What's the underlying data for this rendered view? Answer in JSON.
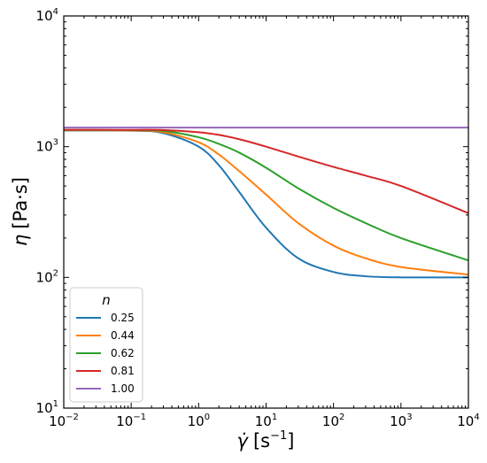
{
  "chart_data": {
    "type": "line",
    "xscale": "log",
    "yscale": "log",
    "xlim": [
      0.01,
      10000
    ],
    "ylim": [
      10,
      10000
    ],
    "xlabel": {
      "symbol": "γ̇",
      "unit": "[s",
      "unit_exp": "−1",
      "unit_close": "]"
    },
    "ylabel": {
      "symbol": "η",
      "unit": "[Pa·s]"
    },
    "xticks": [
      {
        "base": "10",
        "exp": "−2"
      },
      {
        "base": "10",
        "exp": "−1"
      },
      {
        "base": "10",
        "exp": "0"
      },
      {
        "base": "10",
        "exp": "1"
      },
      {
        "base": "10",
        "exp": "2"
      },
      {
        "base": "10",
        "exp": "3"
      },
      {
        "base": "10",
        "exp": "4"
      }
    ],
    "yticks": [
      {
        "base": "10",
        "exp": "1"
      },
      {
        "base": "10",
        "exp": "2"
      },
      {
        "base": "10",
        "exp": "3"
      },
      {
        "base": "10",
        "exp": "4"
      }
    ],
    "legend": {
      "title": "n",
      "position": "lower-left"
    },
    "grid": false,
    "series": [
      {
        "name": "0.25",
        "color": "#1f77b4",
        "x": [
          0.01,
          0.1,
          0.3,
          1,
          2,
          4,
          10,
          30,
          100,
          300,
          1000,
          10000
        ],
        "y": [
          1330,
          1325,
          1270,
          1000,
          720,
          450,
          240,
          140,
          110,
          102,
          100,
          100
        ]
      },
      {
        "name": "0.44",
        "color": "#ff7f0e",
        "x": [
          0.01,
          0.1,
          0.3,
          1,
          2,
          4,
          10,
          30,
          100,
          300,
          1000,
          10000
        ],
        "y": [
          1335,
          1330,
          1290,
          1080,
          870,
          650,
          430,
          260,
          175,
          140,
          120,
          105
        ]
      },
      {
        "name": "0.62",
        "color": "#2ca02c",
        "x": [
          0.01,
          0.1,
          0.3,
          1,
          2,
          4,
          10,
          30,
          100,
          300,
          1000,
          10000
        ],
        "y": [
          1340,
          1338,
          1320,
          1180,
          1050,
          900,
          690,
          480,
          340,
          260,
          200,
          135
        ]
      },
      {
        "name": "0.81",
        "color": "#d62728",
        "x": [
          0.01,
          0.1,
          0.3,
          1,
          2,
          4,
          10,
          30,
          100,
          300,
          1000,
          10000
        ],
        "y": [
          1345,
          1344,
          1340,
          1290,
          1230,
          1140,
          1000,
          840,
          700,
          600,
          500,
          310
        ]
      },
      {
        "name": "1.00",
        "color": "#9467bd",
        "x": [
          0.01,
          10000
        ],
        "y": [
          1400,
          1400
        ]
      }
    ]
  }
}
